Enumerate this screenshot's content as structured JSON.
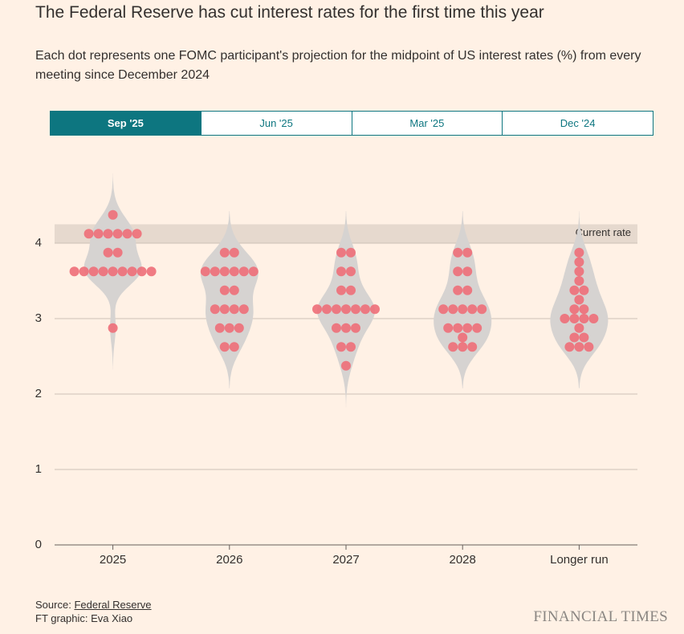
{
  "title": "The Federal Reserve has cut interest rates for the first time this year",
  "subtitle": "Each dot represents one FOMC participant's projection for the midpoint of US interest rates (%) from every meeting since December 2024",
  "tabs": [
    "Sep '25",
    "Jun '25",
    "Mar '25",
    "Dec '24"
  ],
  "active_tab": 0,
  "source_label": "Source:",
  "source_link": "Federal Reserve",
  "credit": "FT graphic: Eva Xiao",
  "logo": "FINANCIAL TIMES",
  "chart_data": {
    "type": "dotplot",
    "categories": [
      "2025",
      "2026",
      "2027",
      "2028",
      "Longer run"
    ],
    "values": [
      [
        4.375,
        4.125,
        4.125,
        4.125,
        4.125,
        4.125,
        4.125,
        3.875,
        3.875,
        3.625,
        3.625,
        3.625,
        3.625,
        3.625,
        3.625,
        3.625,
        3.625,
        3.625,
        2.875
      ],
      [
        3.875,
        3.875,
        3.625,
        3.625,
        3.625,
        3.625,
        3.625,
        3.625,
        3.375,
        3.375,
        3.125,
        3.125,
        3.125,
        3.125,
        2.875,
        2.875,
        2.875,
        2.625,
        2.625
      ],
      [
        3.875,
        3.875,
        3.625,
        3.625,
        3.375,
        3.375,
        3.125,
        3.125,
        3.125,
        3.125,
        3.125,
        3.125,
        3.125,
        2.875,
        2.875,
        2.875,
        2.625,
        2.625,
        2.375
      ],
      [
        3.875,
        3.875,
        3.625,
        3.625,
        3.375,
        3.375,
        3.125,
        3.125,
        3.125,
        3.125,
        3.125,
        2.875,
        2.875,
        2.875,
        2.875,
        2.75,
        2.625,
        2.625,
        2.625
      ],
      [
        3.875,
        3.75,
        3.625,
        3.5,
        3.375,
        3.375,
        3.25,
        3.125,
        3.125,
        3.0,
        3.0,
        3.0,
        3.0,
        2.875,
        2.75,
        2.75,
        2.625,
        2.625,
        2.625
      ]
    ],
    "color": "#ee6e78",
    "violin_color": "#d6d3d1",
    "ylim": [
      0,
      4.8
    ],
    "yticks": [
      0,
      1,
      2,
      3,
      4
    ],
    "grid": true,
    "band": {
      "label": "Current rate",
      "from": 4,
      "to": 4.25,
      "color": "#e6d9ce"
    }
  }
}
